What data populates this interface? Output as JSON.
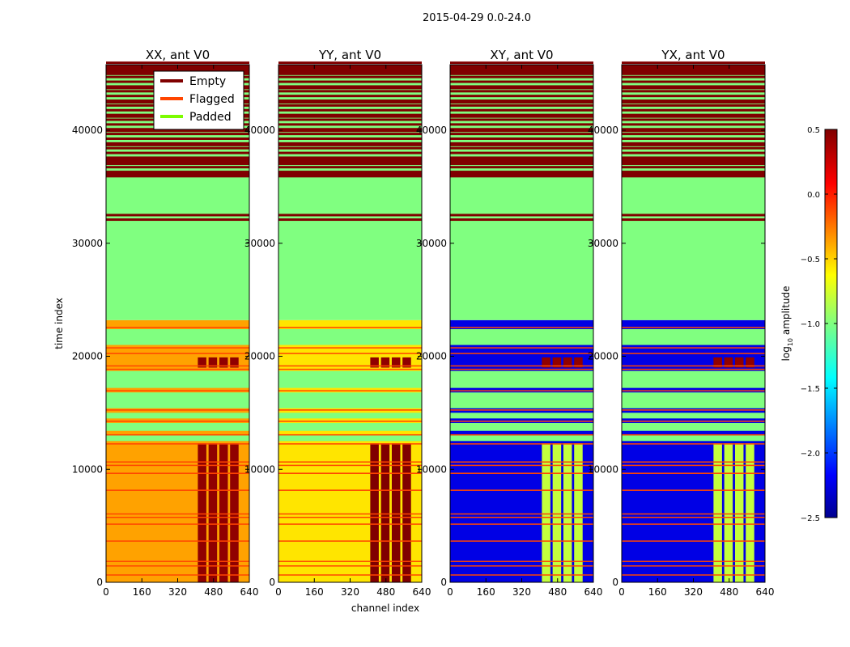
{
  "figure_title": "2015-04-29 0.0-24.0",
  "chart_data": {
    "type": "heatmap",
    "xlabel": "channel index",
    "ylabel": "time index",
    "xlim": [
      0,
      640
    ],
    "ylim": [
      0,
      45800
    ],
    "x_ticks": [
      "0",
      "160",
      "320",
      "480",
      "640"
    ],
    "y_ticks": [
      "0",
      "10000",
      "20000",
      "30000",
      "40000"
    ],
    "panels": [
      {
        "title": "XX, ant V0"
      },
      {
        "title": "YY, ant V0"
      },
      {
        "title": "XY, ant V0"
      },
      {
        "title": "YX, ant V0"
      }
    ],
    "colorbar": {
      "label": "log",
      "label_sub": "10",
      "label_suffix": " amplitude",
      "range": [
        -2.5,
        0.5
      ],
      "ticks": [
        "0.5",
        "0.0",
        "−0.5",
        "−1.0",
        "−1.5",
        "−2.0",
        "−2.5"
      ],
      "tick_values": [
        0.5,
        0.0,
        -0.5,
        -1.0,
        -1.5,
        -2.0,
        -2.5
      ]
    },
    "legend": {
      "placement": "upper-left of first panel",
      "entries": [
        {
          "label": "Empty",
          "color": "#800000"
        },
        {
          "label": "Flagged",
          "color": "#ff4500"
        },
        {
          "label": "Padded",
          "color": "#7cfc00"
        }
      ]
    },
    "regions": {
      "padded_value": -1.0,
      "empty_time_range": [
        36000,
        45800
      ],
      "padded_time_range": [
        23200,
        36000
      ],
      "data_time_range": [
        0,
        23200
      ]
    }
  }
}
